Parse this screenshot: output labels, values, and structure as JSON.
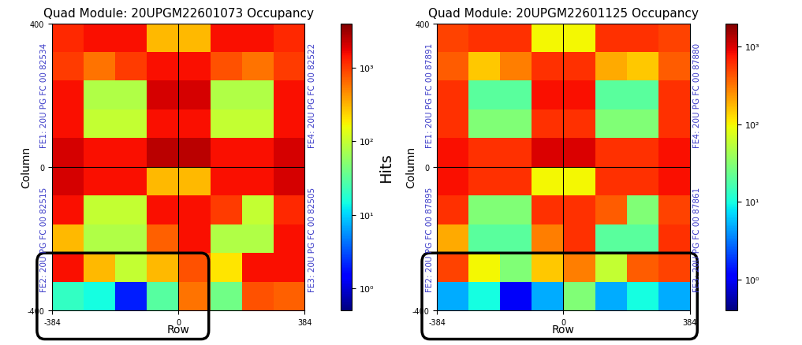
{
  "chart_data": [
    {
      "type": "heatmap",
      "title": "Quad Module: 20UPGM22601073 Occupancy",
      "x_label": "Row",
      "y_label": "Column",
      "xlim": [
        -384,
        384
      ],
      "xticks": [
        -384,
        0,
        384
      ],
      "ylim": [
        -400,
        400
      ],
      "yticks": [
        -400,
        0,
        400
      ],
      "annotations": [
        "FE1: 20U PG FC 00 82534",
        "FE2: 20U PG FC 00 82515",
        "FE4: 20U PG FC 00 82522",
        "FE3: 20U PG FC 00 82505"
      ],
      "cells": [
        [
          20,
          15,
          2,
          30,
          600,
          40,
          800,
          700
        ],
        [
          1500,
          300,
          100,
          300,
          800,
          200,
          1500,
          1500
        ],
        [
          300,
          80,
          80,
          700,
          1500,
          80,
          80,
          1500
        ],
        [
          1500,
          100,
          100,
          1500,
          1500,
          1000,
          100,
          1200
        ],
        [
          2000,
          1500,
          1500,
          300,
          300,
          1500,
          1500,
          2000
        ],
        [
          2000,
          1500,
          1500,
          2500,
          2500,
          1500,
          1500,
          2000
        ],
        [
          1500,
          100,
          100,
          1500,
          1500,
          100,
          100,
          1500
        ],
        [
          1500,
          80,
          80,
          2000,
          2000,
          80,
          80,
          1500
        ],
        [
          1000,
          600,
          1000,
          1500,
          1500,
          800,
          600,
          1000
        ],
        [
          1200,
          1500,
          1500,
          300,
          300,
          1500,
          1500,
          1200
        ]
      ],
      "colorbar": {
        "label": "Hits",
        "log": true,
        "range": [
          0.5,
          4000
        ],
        "ticks": [
          {
            "value": 1,
            "label": "10⁰"
          },
          {
            "value": 10,
            "label": "10¹"
          },
          {
            "value": 100,
            "label": "10²"
          },
          {
            "value": 1000,
            "label": "10³"
          }
        ]
      }
    },
    {
      "type": "heatmap",
      "title": "Quad Module: 20UPGM22601125 Occupancy",
      "x_label": "Row",
      "y_label": "Column",
      "xlim": [
        -384,
        384
      ],
      "xticks": [
        -384,
        0,
        384
      ],
      "ylim": [
        -400,
        400
      ],
      "yticks": [
        -400,
        0,
        400
      ],
      "annotations": [
        "FE1: 20U PG FC 00 87891",
        "FE2: 20U PG FC 00 87895",
        "FE4: 20U PG FC 00 87880",
        "FE3: 20U PG FC 00 87861"
      ],
      "cells": [
        [
          5,
          10,
          1,
          5,
          30,
          5,
          10,
          5
        ],
        [
          500,
          100,
          30,
          150,
          300,
          60,
          400,
          500
        ],
        [
          200,
          20,
          20,
          300,
          600,
          20,
          20,
          600
        ],
        [
          600,
          30,
          30,
          600,
          600,
          400,
          30,
          500
        ],
        [
          800,
          600,
          600,
          100,
          100,
          600,
          600,
          800
        ],
        [
          800,
          600,
          600,
          1000,
          1000,
          600,
          600,
          800
        ],
        [
          600,
          30,
          30,
          600,
          600,
          30,
          30,
          600
        ],
        [
          600,
          20,
          20,
          800,
          800,
          20,
          20,
          600
        ],
        [
          400,
          150,
          300,
          600,
          600,
          200,
          150,
          400
        ],
        [
          500,
          600,
          600,
          100,
          100,
          600,
          600,
          500
        ]
      ],
      "colorbar": {
        "log": true,
        "range": [
          0.4,
          2000
        ],
        "ticks": [
          {
            "value": 1,
            "label": "10⁰"
          },
          {
            "value": 10,
            "label": "10¹"
          },
          {
            "value": 100,
            "label": "10²"
          },
          {
            "value": 1000,
            "label": "10³"
          }
        ]
      }
    }
  ]
}
